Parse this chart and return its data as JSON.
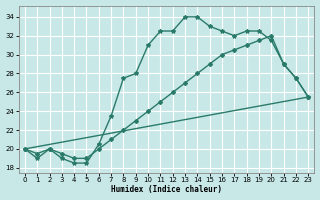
{
  "xlabel": "Humidex (Indice chaleur)",
  "bg_color": "#c8e8e8",
  "grid_color": "#ffffff",
  "line_color": "#2a7a6a",
  "xlim": [
    -0.5,
    23.5
  ],
  "ylim": [
    17.5,
    35.2
  ],
  "xticks": [
    0,
    1,
    2,
    3,
    4,
    5,
    6,
    7,
    8,
    9,
    10,
    11,
    12,
    13,
    14,
    15,
    16,
    17,
    18,
    19,
    20,
    21,
    22,
    23
  ],
  "yticks": [
    18,
    20,
    22,
    24,
    26,
    28,
    30,
    32,
    34
  ],
  "curve1_x": [
    0,
    1,
    2,
    3,
    4,
    5,
    6,
    7,
    8,
    9,
    10,
    11,
    12,
    13,
    14,
    15,
    16,
    17,
    18,
    19,
    20,
    21,
    22,
    23
  ],
  "curve1_y": [
    20,
    19,
    20,
    19,
    18.5,
    18.5,
    20.5,
    23.5,
    27.5,
    28,
    31,
    32.5,
    32.5,
    34,
    34,
    33,
    32.5,
    32,
    32.5,
    32.5,
    31.5,
    29,
    27.5,
    25.5
  ],
  "curve2_x": [
    0,
    1,
    2,
    3,
    4,
    5,
    6,
    7,
    8,
    9,
    10,
    11,
    12,
    13,
    14,
    15,
    16,
    17,
    18,
    19,
    20,
    21,
    22,
    23
  ],
  "curve2_y": [
    20,
    19.5,
    20,
    19.5,
    19,
    19,
    20,
    21,
    22,
    23,
    24,
    25,
    26,
    27,
    28,
    29,
    30,
    30.5,
    31,
    31.5,
    32,
    29,
    27.5,
    25.5
  ],
  "curve3_x": [
    0,
    23
  ],
  "curve3_y": [
    20,
    25.5
  ]
}
